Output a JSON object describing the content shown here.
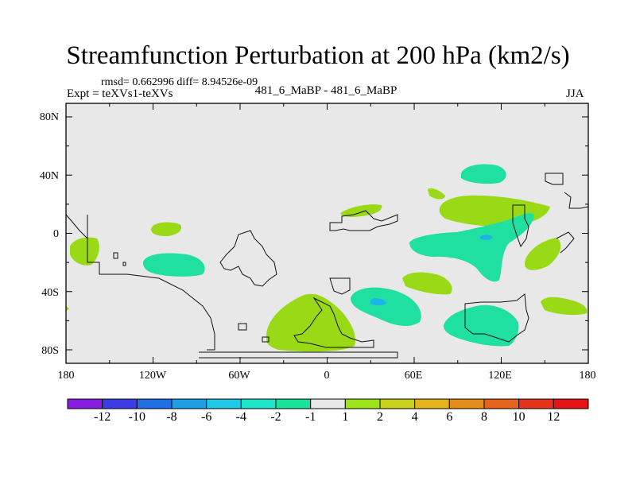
{
  "title": "Streamfunction Perturbation at 200 hPa (km2/s)",
  "stats": "rmsd= 0.662996 diff= 8.94526e-09",
  "expt": "Expt = teXVs1-teXVs",
  "center_label": "481_6_MaBP - 481_6_MaBP",
  "season": "JJA",
  "y_axis": {
    "labels": [
      "80N",
      "40N",
      "0",
      "40S",
      "80S"
    ]
  },
  "x_axis": {
    "labels": [
      "180",
      "120W",
      "60W",
      "0",
      "60E",
      "120E",
      "180"
    ]
  },
  "colorbar": {
    "labels": [
      "-12",
      "-10",
      "-8",
      "-6",
      "-4",
      "-2",
      "-1",
      "1",
      "2",
      "4",
      "6",
      "8",
      "10",
      "12"
    ],
    "colors": [
      "#8a1be0",
      "#3c3ce6",
      "#1e6ee6",
      "#1e9ee6",
      "#1ec8e6",
      "#1ee6c8",
      "#17e39b",
      "#e8e8e8",
      "#9ce31a",
      "#c8d21a",
      "#e6b41a",
      "#e68c1a",
      "#e6641a",
      "#e6321a",
      "#e61414"
    ]
  },
  "colors": {
    "background_field": "#e8e8e8",
    "positive_fill": "#9ad915",
    "negative_fill": "#1fe0a0",
    "negative_core": "#1ab4e8"
  }
}
